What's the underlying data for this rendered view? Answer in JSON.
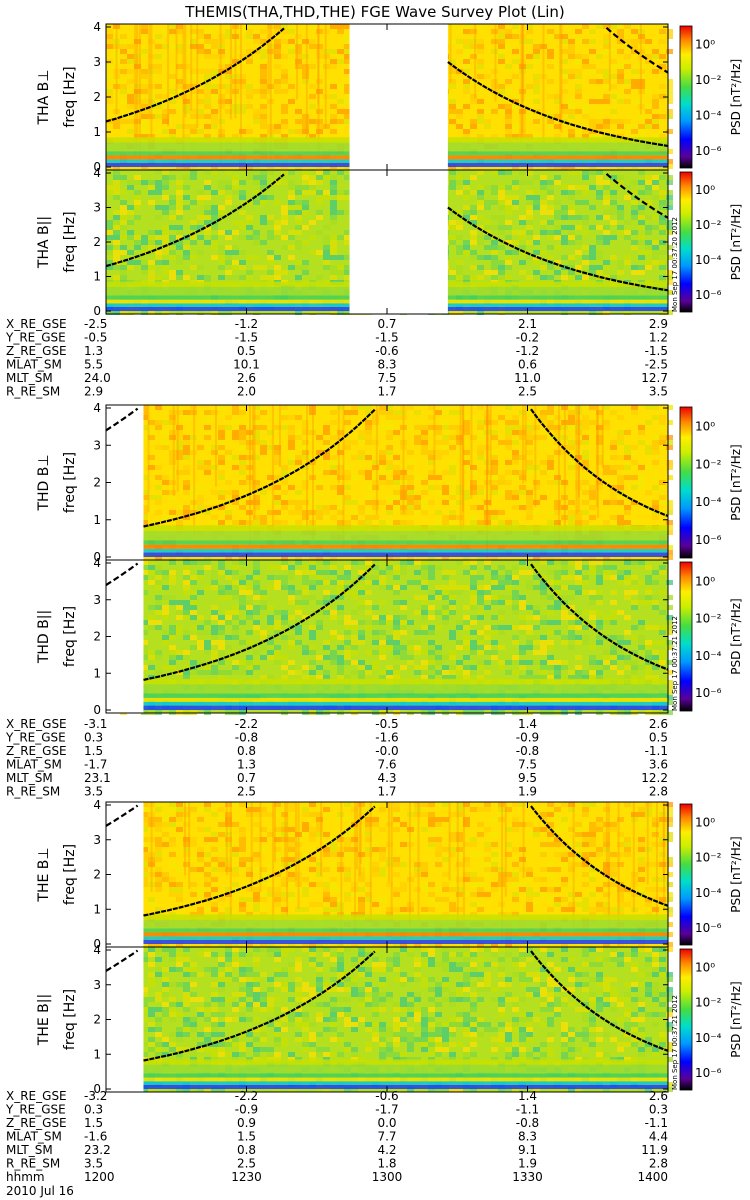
{
  "title": "THEMIS(THA,THD,THE) FGE Wave Survey Plot (Lin)",
  "footer": {
    "row_label": "hhmm",
    "date": "2010 Jul 16"
  },
  "stamps": [
    "Mon Sep 17 00:37:20 2012",
    "Mon Sep 17 00:37:20 2012",
    "Mon Sep 17 00:37:21 2012",
    "Mon Sep 17 00:37:21 2012"
  ],
  "colorbar": {
    "label": "PSD [nT²/Hz]",
    "ticks": [
      "10⁰",
      "10⁻²",
      "10⁻⁴",
      "10⁻⁶"
    ]
  },
  "chart_data": {
    "type": "heatmap",
    "x_label_times": [
      "1200",
      "1230",
      "1300",
      "1330",
      "1400"
    ],
    "ylim": [
      0,
      4
    ],
    "yticks": [
      "0",
      "1",
      "2",
      "3",
      "4"
    ],
    "ylabel": "freq [Hz]",
    "panels": [
      {
        "probe": "THA",
        "component": "B⊥",
        "data_gap": [
          "1252",
          "1313"
        ],
        "curves": [
          "rising 1200-1240",
          "falling 1313-1400",
          "dashed 1345-1400"
        ],
        "intensity": "high"
      },
      {
        "probe": "THA",
        "component": "B||",
        "data_gap": [
          "1252",
          "1313"
        ],
        "curves": [
          "rising 1200-1240",
          "falling 1313-1400",
          "dashed 1345-1400"
        ],
        "intensity": "medium"
      },
      {
        "probe": "THD",
        "component": "B⊥",
        "data_gap": [
          "1200",
          "1208"
        ],
        "curves": [
          "rising 1208-1300",
          "falling 1330-1400"
        ],
        "intensity": "high"
      },
      {
        "probe": "THD",
        "component": "B||",
        "data_gap": [
          "1200",
          "1208"
        ],
        "curves": [
          "rising 1208-1300",
          "falling 1330-1400"
        ],
        "intensity": "medium"
      },
      {
        "probe": "THE",
        "component": "B⊥",
        "data_gap": [
          "1200",
          "1208"
        ],
        "curves": [
          "rising 1208-1300",
          "falling 1330-1400"
        ],
        "intensity": "high"
      },
      {
        "probe": "THE",
        "component": "B||",
        "data_gap": [
          "1200",
          "1208"
        ],
        "curves": [
          "rising 1208-1300",
          "falling 1330-1400"
        ],
        "intensity": "medium"
      }
    ],
    "ephemeris": [
      {
        "probe": "THA",
        "rows": [
          {
            "name": "X_RE_GSE",
            "values": [
              "-2.5",
              "-1.2",
              "0.7",
              "2.1",
              "2.9"
            ]
          },
          {
            "name": "Y_RE_GSE",
            "values": [
              "-0.5",
              "-1.5",
              "-1.5",
              "-0.2",
              "1.2"
            ]
          },
          {
            "name": "Z_RE_GSE",
            "values": [
              "1.3",
              "0.5",
              "-0.6",
              "-1.2",
              "-1.5"
            ]
          },
          {
            "name": "MLAT_SM",
            "values": [
              "5.5",
              "10.1",
              "8.3",
              "0.6",
              "-2.5"
            ]
          },
          {
            "name": "MLT_SM",
            "values": [
              "24.0",
              "2.6",
              "7.5",
              "11.0",
              "12.7"
            ]
          },
          {
            "name": "R_RE_SM",
            "values": [
              "2.9",
              "2.0",
              "1.7",
              "2.5",
              "3.5"
            ]
          }
        ]
      },
      {
        "probe": "THD",
        "rows": [
          {
            "name": "X_RE_GSE",
            "values": [
              "-3.1",
              "-2.2",
              "-0.5",
              "1.4",
              "2.6"
            ]
          },
          {
            "name": "Y_RE_GSE",
            "values": [
              "0.3",
              "-0.8",
              "-1.6",
              "-0.9",
              "0.5"
            ]
          },
          {
            "name": "Z_RE_GSE",
            "values": [
              "1.5",
              "0.8",
              "-0.0",
              "-0.8",
              "-1.1"
            ]
          },
          {
            "name": "MLAT_SM",
            "values": [
              "-1.7",
              "1.3",
              "7.6",
              "7.5",
              "3.6"
            ]
          },
          {
            "name": "MLT_SM",
            "values": [
              "23.1",
              "0.7",
              "4.3",
              "9.5",
              "12.2"
            ]
          },
          {
            "name": "R_RE_SM",
            "values": [
              "3.5",
              "2.5",
              "1.7",
              "1.9",
              "2.8"
            ]
          }
        ]
      },
      {
        "probe": "THE",
        "rows": [
          {
            "name": "X_RE_GSE",
            "values": [
              "-3.2",
              "-2.2",
              "-0.6",
              "1.4",
              "2.6"
            ]
          },
          {
            "name": "Y_RE_GSE",
            "values": [
              "0.3",
              "-0.9",
              "-1.7",
              "-1.1",
              "0.3"
            ]
          },
          {
            "name": "Z_RE_GSE",
            "values": [
              "1.5",
              "0.9",
              "0.0",
              "-0.8",
              "-1.1"
            ]
          },
          {
            "name": "MLAT_SM",
            "values": [
              "-1.6",
              "1.5",
              "7.7",
              "8.3",
              "4.4"
            ]
          },
          {
            "name": "MLT_SM",
            "values": [
              "23.2",
              "0.8",
              "4.2",
              "9.1",
              "11.9"
            ]
          },
          {
            "name": "R_RE_SM",
            "values": [
              "3.5",
              "2.5",
              "1.8",
              "1.9",
              "2.8"
            ]
          }
        ]
      }
    ]
  }
}
